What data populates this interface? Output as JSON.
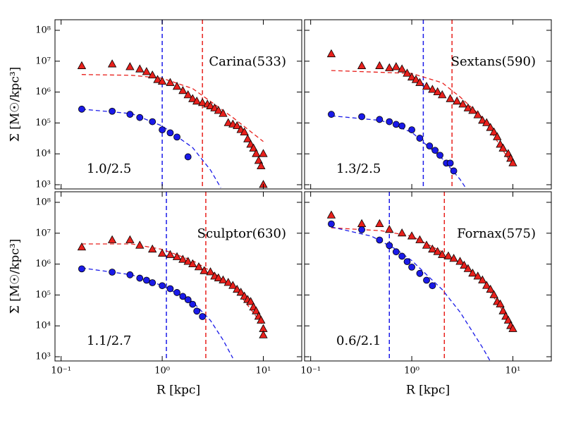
{
  "chart_data": [
    {
      "type": "scatter",
      "log_x": true,
      "log_y": true,
      "xlim": [
        0.087,
        24
      ],
      "ylim": [
        730,
        220000000.0
      ],
      "xticks": [
        {
          "value": 0.1,
          "label": "10⁻¹"
        },
        {
          "value": 1,
          "label": "10⁰"
        },
        {
          "value": 10,
          "label": "10¹"
        }
      ],
      "yticks": [
        {
          "value": 1000,
          "label": "10³"
        },
        {
          "value": 10000,
          "label": "10⁴"
        },
        {
          "value": 100000,
          "label": "10⁵"
        },
        {
          "value": 1000000,
          "label": "10⁶"
        },
        {
          "value": 10000000,
          "label": "10⁷"
        },
        {
          "value": 100000000,
          "label": "10⁸"
        }
      ],
      "ylabel": "Σ [M☉/kpc³]",
      "annotation": "Carina(533)",
      "label": "1.0/2.5",
      "series": [
        {
          "marker": "triangle",
          "color": "#e8201c",
          "x": [
            0.16,
            0.32,
            0.48,
            0.6,
            0.7,
            0.8,
            0.9,
            1.0,
            1.2,
            1.4,
            1.6,
            1.8,
            2.0,
            2.2,
            2.5,
            2.8,
            3.0,
            3.3,
            3.6,
            4.0,
            4.5,
            5.0,
            5.5,
            6.0,
            6.5,
            7.0,
            7.5,
            8.0,
            8.5,
            9.0,
            9.5,
            10,
            10
          ],
          "values": [
            7000000.0,
            8000000.0,
            6500000.0,
            5500000.0,
            4500000.0,
            3500000.0,
            2500000.0,
            2200000.0,
            2000000.0,
            1500000.0,
            1100000.0,
            800000.0,
            600000.0,
            500000.0,
            450000.0,
            400000.0,
            350000.0,
            300000.0,
            250000.0,
            200000.0,
            100000.0,
            90000.0,
            80000.0,
            60000.0,
            50000.0,
            30000.0,
            20000.0,
            15000.0,
            10000.0,
            6000.0,
            4000.0,
            10000.0,
            1000.0
          ]
        },
        {
          "marker": "circle",
          "color": "#1a1ae8",
          "x": [
            0.16,
            0.32,
            0.48,
            0.6,
            0.8,
            1.0,
            1.2,
            1.4,
            1.8
          ],
          "values": [
            280000.0,
            240000.0,
            190000.0,
            150000.0,
            110000.0,
            60000.0,
            48000.0,
            35000.0,
            8000.0
          ]
        }
      ],
      "fits": [
        {
          "color": "#e8201c",
          "x": [
            0.16,
            0.5,
            1,
            2,
            3,
            5,
            10
          ],
          "values": [
            3700000.0,
            3500000.0,
            2800000.0,
            1300000.0,
            500000.0,
            150000.0,
            25000.0
          ]
        },
        {
          "color": "#1a1ae8",
          "x": [
            0.16,
            0.5,
            1,
            2,
            3,
            3.8
          ],
          "values": [
            280000.0,
            200000.0,
            80000.0,
            16000.0,
            3000.0,
            800
          ]
        }
      ],
      "vlines": [
        {
          "color": "#1a1ae8",
          "x": 1.0
        },
        {
          "color": "#e8201c",
          "x": 2.5
        }
      ]
    },
    {
      "type": "scatter",
      "log_x": true,
      "log_y": true,
      "xlim": [
        0.087,
        24
      ],
      "ylim": [
        730,
        220000000.0
      ],
      "xticks": [
        {
          "value": 0.1,
          "label": "10⁻¹"
        },
        {
          "value": 1,
          "label": "10⁰"
        },
        {
          "value": 10,
          "label": "10¹"
        }
      ],
      "yticks": [
        {
          "value": 1000,
          "label": "10³"
        },
        {
          "value": 10000,
          "label": "10⁴"
        },
        {
          "value": 100000,
          "label": "10⁵"
        },
        {
          "value": 1000000,
          "label": "10⁶"
        },
        {
          "value": 10000000,
          "label": "10⁷"
        },
        {
          "value": 100000000,
          "label": "10⁸"
        }
      ],
      "annotation": "Sextans(590)",
      "label": "1.3/2.5",
      "series": [
        {
          "marker": "triangle",
          "color": "#e8201c",
          "x": [
            0.16,
            0.32,
            0.48,
            0.6,
            0.7,
            0.8,
            0.9,
            1.0,
            1.1,
            1.2,
            1.4,
            1.6,
            1.8,
            2.0,
            2.4,
            2.8,
            3.2,
            3.6,
            4,
            4.5,
            5,
            5.5,
            6,
            6.5,
            7,
            7.5,
            8,
            9,
            9.5,
            10
          ],
          "values": [
            17000000.0,
            7000000.0,
            7000000.0,
            6000000.0,
            6500000.0,
            5500000.0,
            4000000.0,
            3000000.0,
            2500000.0,
            2000000.0,
            1500000.0,
            1200000.0,
            1000000.0,
            800000.0,
            600000.0,
            500000.0,
            400000.0,
            300000.0,
            250000.0,
            180000.0,
            120000.0,
            100000.0,
            70000.0,
            50000.0,
            35000.0,
            20000.0,
            15000.0,
            10000.0,
            7000.0,
            5000.0
          ]
        },
        {
          "marker": "circle",
          "color": "#1a1ae8",
          "x": [
            0.16,
            0.32,
            0.48,
            0.6,
            0.7,
            0.8,
            1.0,
            1.2,
            1.5,
            1.7,
            1.9,
            2.2,
            2.4,
            2.6
          ],
          "values": [
            190000.0,
            160000.0,
            130000.0,
            110000.0,
            90000.0,
            80000.0,
            60000.0,
            32000.0,
            18000.0,
            13000.0,
            9000.0,
            5000.0,
            5000.0,
            2800.0
          ]
        }
      ],
      "fits": [
        {
          "color": "#e8201c",
          "x": [
            0.16,
            1,
            2,
            3,
            5,
            10
          ],
          "values": [
            5000000.0,
            4000000.0,
            2000000.0,
            700000.0,
            150000.0,
            4000.0
          ]
        },
        {
          "color": "#1a1ae8",
          "x": [
            0.16,
            0.5,
            1,
            2,
            3,
            3.5
          ],
          "values": [
            170000.0,
            120000.0,
            50000.0,
            7000.0,
            1500.0,
            700
          ]
        }
      ],
      "vlines": [
        {
          "color": "#1a1ae8",
          "x": 1.3
        },
        {
          "color": "#e8201c",
          "x": 2.5
        }
      ]
    },
    {
      "type": "scatter",
      "log_x": true,
      "log_y": true,
      "xlim": [
        0.087,
        24
      ],
      "ylim": [
        730,
        220000000.0
      ],
      "xticks": [
        {
          "value": 0.1,
          "label": "10⁻¹"
        },
        {
          "value": 1,
          "label": "10⁰"
        },
        {
          "value": 10,
          "label": "10¹"
        }
      ],
      "yticks": [
        {
          "value": 1000,
          "label": "10³"
        },
        {
          "value": 10000,
          "label": "10⁴"
        },
        {
          "value": 100000,
          "label": "10⁵"
        },
        {
          "value": 1000000,
          "label": "10⁶"
        },
        {
          "value": 10000000,
          "label": "10⁷"
        },
        {
          "value": 100000000,
          "label": "10⁸"
        }
      ],
      "ylabel": "Σ [M☉/kpc³]",
      "xlabel": "R [kpc]",
      "annotation": "Sculptor(630)",
      "label": "1.1/2.7",
      "series": [
        {
          "marker": "triangle",
          "color": "#e8201c",
          "x": [
            0.16,
            0.32,
            0.48,
            0.6,
            0.8,
            1.0,
            1.2,
            1.4,
            1.6,
            1.8,
            2.0,
            2.3,
            2.6,
            3,
            3.3,
            3.6,
            4,
            4.5,
            5,
            5.5,
            6,
            6.5,
            7,
            7.5,
            8,
            8.5,
            9,
            9.5,
            10,
            10
          ],
          "values": [
            3500000.0,
            6000000.0,
            6000000.0,
            4000000.0,
            3000000.0,
            2200000.0,
            2000000.0,
            1700000.0,
            1400000.0,
            1200000.0,
            1000000.0,
            800000.0,
            600000.0,
            550000.0,
            400000.0,
            350000.0,
            300000.0,
            250000.0,
            200000.0,
            150000.0,
            120000.0,
            90000.0,
            70000.0,
            60000.0,
            40000.0,
            30000.0,
            20000.0,
            15000.0,
            8000.0,
            5000.0
          ]
        },
        {
          "marker": "circle",
          "color": "#1a1ae8",
          "x": [
            0.16,
            0.32,
            0.48,
            0.6,
            0.7,
            0.8,
            1.0,
            1.2,
            1.4,
            1.6,
            1.8,
            2.0,
            2.2,
            2.5
          ],
          "values": [
            700000.0,
            550000.0,
            450000.0,
            350000.0,
            300000.0,
            250000.0,
            200000.0,
            160000.0,
            120000.0,
            90000.0,
            70000.0,
            50000.0,
            30000.0,
            20000.0
          ]
        }
      ],
      "fits": [
        {
          "color": "#e8201c",
          "x": [
            0.16,
            0.5,
            1,
            2,
            3,
            5,
            10
          ],
          "values": [
            4500000.0,
            4500000.0,
            3000000.0,
            1300000.0,
            600000.0,
            200000.0,
            10000.0
          ]
        },
        {
          "color": "#1a1ae8",
          "x": [
            0.16,
            0.5,
            1,
            2,
            3,
            4,
            5
          ],
          "values": [
            750000.0,
            450000.0,
            200000.0,
            60000.0,
            15000.0,
            3500.0,
            900
          ]
        }
      ],
      "vlines": [
        {
          "color": "#1a1ae8",
          "x": 1.1
        },
        {
          "color": "#e8201c",
          "x": 2.7
        }
      ]
    },
    {
      "type": "scatter",
      "log_x": true,
      "log_y": true,
      "xlim": [
        0.087,
        24
      ],
      "ylim": [
        730,
        220000000.0
      ],
      "xticks": [
        {
          "value": 0.1,
          "label": "10⁻¹"
        },
        {
          "value": 1,
          "label": "10⁰"
        },
        {
          "value": 10,
          "label": "10¹"
        }
      ],
      "yticks": [
        {
          "value": 1000,
          "label": "10³"
        },
        {
          "value": 10000,
          "label": "10⁴"
        },
        {
          "value": 100000,
          "label": "10⁵"
        },
        {
          "value": 1000000,
          "label": "10⁶"
        },
        {
          "value": 10000000,
          "label": "10⁷"
        },
        {
          "value": 100000000,
          "label": "10⁸"
        }
      ],
      "xlabel": "R [kpc]",
      "annotation": "Fornax(575)",
      "label": "0.6/2.1",
      "series": [
        {
          "marker": "triangle",
          "color": "#e8201c",
          "x": [
            0.16,
            0.32,
            0.48,
            0.6,
            0.8,
            1.0,
            1.2,
            1.4,
            1.6,
            1.8,
            2.0,
            2.3,
            2.6,
            3,
            3.3,
            3.6,
            4,
            4.5,
            5,
            5.5,
            6,
            6.5,
            7,
            7.5,
            8,
            8.5,
            9,
            9.5,
            10
          ],
          "values": [
            38000000.0,
            20000000.0,
            20000000.0,
            13000000.0,
            10000000.0,
            8000000.0,
            6000000.0,
            4000000.0,
            3000000.0,
            2500000.0,
            2000000.0,
            1800000.0,
            1500000.0,
            1200000.0,
            900000.0,
            700000.0,
            500000.0,
            400000.0,
            300000.0,
            200000.0,
            150000.0,
            100000.0,
            60000.0,
            50000.0,
            30000.0,
            20000.0,
            15000.0,
            10000.0,
            8000.0
          ]
        },
        {
          "marker": "circle",
          "color": "#1a1ae8",
          "x": [
            0.16,
            0.32,
            0.48,
            0.6,
            0.7,
            0.8,
            0.9,
            1.0,
            1.2,
            1.4,
            1.6
          ],
          "values": [
            20000000.0,
            13000000.0,
            6000000.0,
            4000000.0,
            2500000.0,
            1800000.0,
            1200000.0,
            800000.0,
            500000.0,
            300000.0,
            200000.0
          ]
        }
      ],
      "fits": [
        {
          "color": "#e8201c",
          "x": [
            0.16,
            0.5,
            1,
            2,
            3,
            5,
            10
          ],
          "values": [
            15000000.0,
            12000000.0,
            8000000.0,
            2500000.0,
            1000000.0,
            300000.0,
            10000.0
          ]
        },
        {
          "color": "#1a1ae8",
          "x": [
            0.16,
            0.4,
            0.7,
            1,
            2,
            3,
            5,
            6
          ],
          "values": [
            16000000.0,
            8000000.0,
            3000000.0,
            1300000.0,
            150000.0,
            28000.0,
            2000.0,
            700
          ]
        }
      ],
      "vlines": [
        {
          "color": "#1a1ae8",
          "x": 0.6
        },
        {
          "color": "#e8201c",
          "x": 2.1
        }
      ]
    }
  ]
}
